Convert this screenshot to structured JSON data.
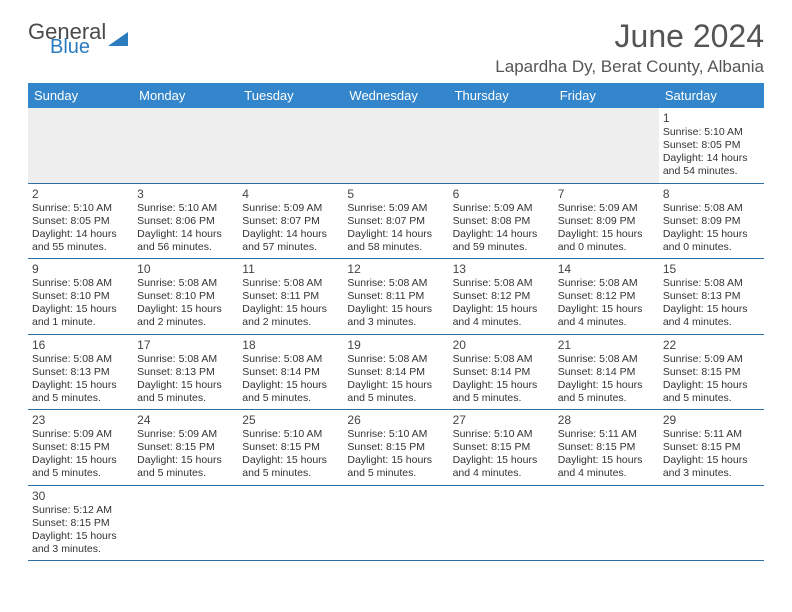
{
  "logo": {
    "line1": "General",
    "line2": "Blue"
  },
  "title": "June 2024",
  "location": "Lapardha Dy, Berat County, Albania",
  "colors": {
    "header_bg": "#3486cc",
    "header_text": "#ffffff",
    "row_border": "#2e6da4",
    "blank_bg": "#eeeeee",
    "logo_blue": "#2b7bbf",
    "text": "#333333"
  },
  "fonts": {
    "title_pt": 32,
    "location_pt": 17,
    "dayhead_pt": 13,
    "cell_pt": 10.5
  },
  "daynames": [
    "Sunday",
    "Monday",
    "Tuesday",
    "Wednesday",
    "Thursday",
    "Friday",
    "Saturday"
  ],
  "weeks": [
    [
      null,
      null,
      null,
      null,
      null,
      null,
      {
        "n": "1",
        "sr": "Sunrise: 5:10 AM",
        "ss": "Sunset: 8:05 PM",
        "dl1": "Daylight: 14 hours",
        "dl2": "and 54 minutes."
      }
    ],
    [
      {
        "n": "2",
        "sr": "Sunrise: 5:10 AM",
        "ss": "Sunset: 8:05 PM",
        "dl1": "Daylight: 14 hours",
        "dl2": "and 55 minutes."
      },
      {
        "n": "3",
        "sr": "Sunrise: 5:10 AM",
        "ss": "Sunset: 8:06 PM",
        "dl1": "Daylight: 14 hours",
        "dl2": "and 56 minutes."
      },
      {
        "n": "4",
        "sr": "Sunrise: 5:09 AM",
        "ss": "Sunset: 8:07 PM",
        "dl1": "Daylight: 14 hours",
        "dl2": "and 57 minutes."
      },
      {
        "n": "5",
        "sr": "Sunrise: 5:09 AM",
        "ss": "Sunset: 8:07 PM",
        "dl1": "Daylight: 14 hours",
        "dl2": "and 58 minutes."
      },
      {
        "n": "6",
        "sr": "Sunrise: 5:09 AM",
        "ss": "Sunset: 8:08 PM",
        "dl1": "Daylight: 14 hours",
        "dl2": "and 59 minutes."
      },
      {
        "n": "7",
        "sr": "Sunrise: 5:09 AM",
        "ss": "Sunset: 8:09 PM",
        "dl1": "Daylight: 15 hours",
        "dl2": "and 0 minutes."
      },
      {
        "n": "8",
        "sr": "Sunrise: 5:08 AM",
        "ss": "Sunset: 8:09 PM",
        "dl1": "Daylight: 15 hours",
        "dl2": "and 0 minutes."
      }
    ],
    [
      {
        "n": "9",
        "sr": "Sunrise: 5:08 AM",
        "ss": "Sunset: 8:10 PM",
        "dl1": "Daylight: 15 hours",
        "dl2": "and 1 minute."
      },
      {
        "n": "10",
        "sr": "Sunrise: 5:08 AM",
        "ss": "Sunset: 8:10 PM",
        "dl1": "Daylight: 15 hours",
        "dl2": "and 2 minutes."
      },
      {
        "n": "11",
        "sr": "Sunrise: 5:08 AM",
        "ss": "Sunset: 8:11 PM",
        "dl1": "Daylight: 15 hours",
        "dl2": "and 2 minutes."
      },
      {
        "n": "12",
        "sr": "Sunrise: 5:08 AM",
        "ss": "Sunset: 8:11 PM",
        "dl1": "Daylight: 15 hours",
        "dl2": "and 3 minutes."
      },
      {
        "n": "13",
        "sr": "Sunrise: 5:08 AM",
        "ss": "Sunset: 8:12 PM",
        "dl1": "Daylight: 15 hours",
        "dl2": "and 4 minutes."
      },
      {
        "n": "14",
        "sr": "Sunrise: 5:08 AM",
        "ss": "Sunset: 8:12 PM",
        "dl1": "Daylight: 15 hours",
        "dl2": "and 4 minutes."
      },
      {
        "n": "15",
        "sr": "Sunrise: 5:08 AM",
        "ss": "Sunset: 8:13 PM",
        "dl1": "Daylight: 15 hours",
        "dl2": "and 4 minutes."
      }
    ],
    [
      {
        "n": "16",
        "sr": "Sunrise: 5:08 AM",
        "ss": "Sunset: 8:13 PM",
        "dl1": "Daylight: 15 hours",
        "dl2": "and 5 minutes."
      },
      {
        "n": "17",
        "sr": "Sunrise: 5:08 AM",
        "ss": "Sunset: 8:13 PM",
        "dl1": "Daylight: 15 hours",
        "dl2": "and 5 minutes."
      },
      {
        "n": "18",
        "sr": "Sunrise: 5:08 AM",
        "ss": "Sunset: 8:14 PM",
        "dl1": "Daylight: 15 hours",
        "dl2": "and 5 minutes."
      },
      {
        "n": "19",
        "sr": "Sunrise: 5:08 AM",
        "ss": "Sunset: 8:14 PM",
        "dl1": "Daylight: 15 hours",
        "dl2": "and 5 minutes."
      },
      {
        "n": "20",
        "sr": "Sunrise: 5:08 AM",
        "ss": "Sunset: 8:14 PM",
        "dl1": "Daylight: 15 hours",
        "dl2": "and 5 minutes."
      },
      {
        "n": "21",
        "sr": "Sunrise: 5:08 AM",
        "ss": "Sunset: 8:14 PM",
        "dl1": "Daylight: 15 hours",
        "dl2": "and 5 minutes."
      },
      {
        "n": "22",
        "sr": "Sunrise: 5:09 AM",
        "ss": "Sunset: 8:15 PM",
        "dl1": "Daylight: 15 hours",
        "dl2": "and 5 minutes."
      }
    ],
    [
      {
        "n": "23",
        "sr": "Sunrise: 5:09 AM",
        "ss": "Sunset: 8:15 PM",
        "dl1": "Daylight: 15 hours",
        "dl2": "and 5 minutes."
      },
      {
        "n": "24",
        "sr": "Sunrise: 5:09 AM",
        "ss": "Sunset: 8:15 PM",
        "dl1": "Daylight: 15 hours",
        "dl2": "and 5 minutes."
      },
      {
        "n": "25",
        "sr": "Sunrise: 5:10 AM",
        "ss": "Sunset: 8:15 PM",
        "dl1": "Daylight: 15 hours",
        "dl2": "and 5 minutes."
      },
      {
        "n": "26",
        "sr": "Sunrise: 5:10 AM",
        "ss": "Sunset: 8:15 PM",
        "dl1": "Daylight: 15 hours",
        "dl2": "and 5 minutes."
      },
      {
        "n": "27",
        "sr": "Sunrise: 5:10 AM",
        "ss": "Sunset: 8:15 PM",
        "dl1": "Daylight: 15 hours",
        "dl2": "and 4 minutes."
      },
      {
        "n": "28",
        "sr": "Sunrise: 5:11 AM",
        "ss": "Sunset: 8:15 PM",
        "dl1": "Daylight: 15 hours",
        "dl2": "and 4 minutes."
      },
      {
        "n": "29",
        "sr": "Sunrise: 5:11 AM",
        "ss": "Sunset: 8:15 PM",
        "dl1": "Daylight: 15 hours",
        "dl2": "and 3 minutes."
      }
    ],
    [
      {
        "n": "30",
        "sr": "Sunrise: 5:12 AM",
        "ss": "Sunset: 8:15 PM",
        "dl1": "Daylight: 15 hours",
        "dl2": "and 3 minutes."
      },
      null,
      null,
      null,
      null,
      null,
      null
    ]
  ]
}
